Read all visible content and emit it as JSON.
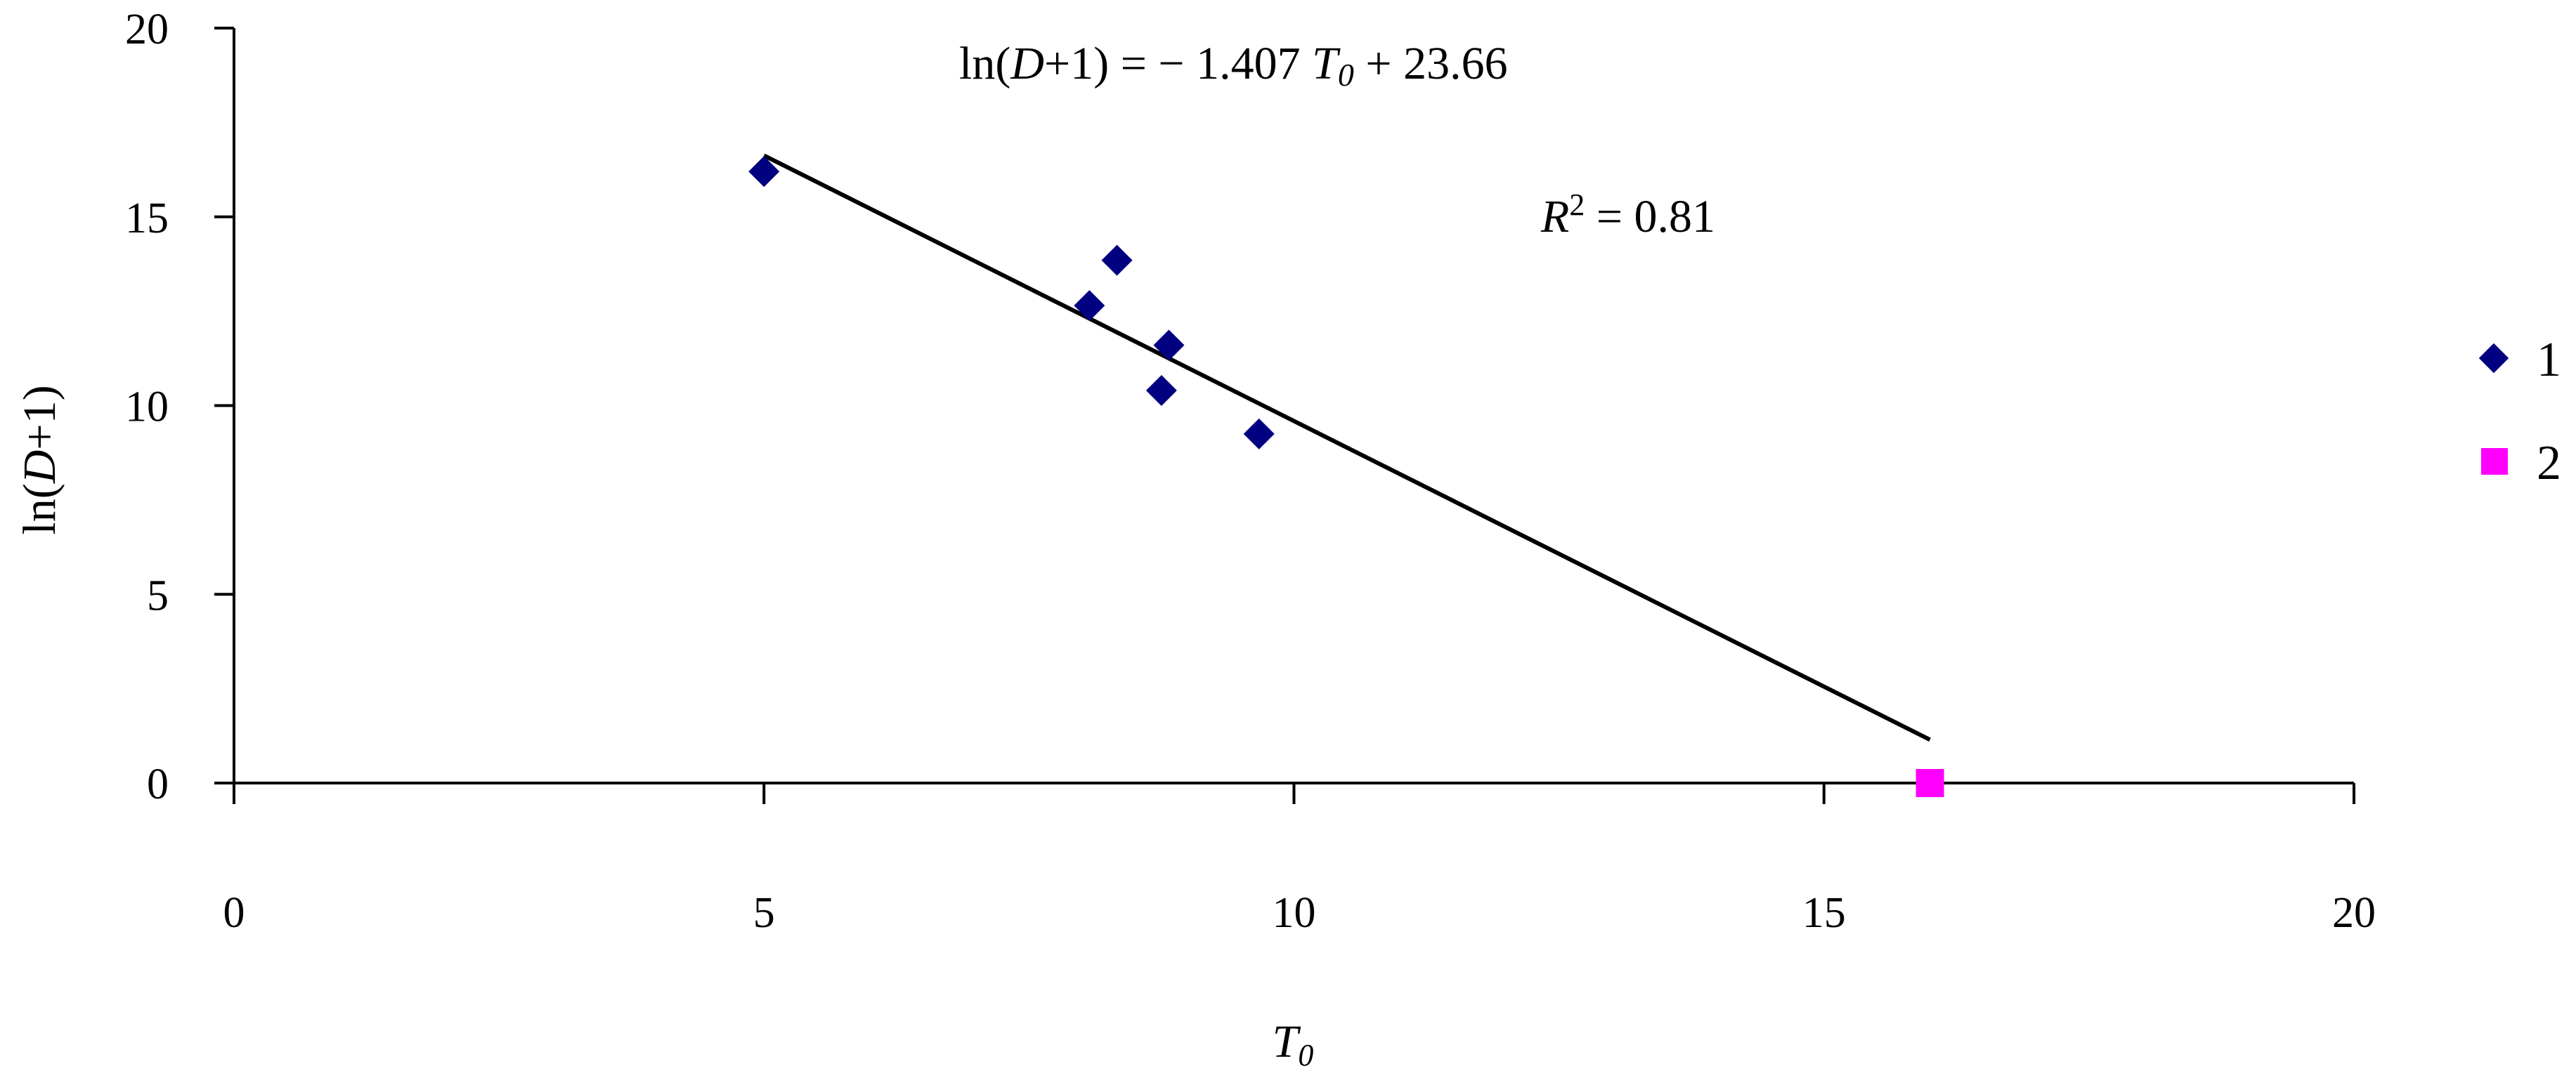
{
  "chart_data": {
    "type": "scatter",
    "x_axis": {
      "label": "T",
      "label_subscript": "0",
      "range": [
        0,
        20
      ],
      "ticks": [
        "0",
        "5",
        "10",
        "15",
        "20"
      ]
    },
    "y_axis": {
      "label_prefix": "ln(",
      "label_var": "D",
      "label_suffix": "+1)",
      "range": [
        0,
        20
      ],
      "ticks": [
        "0",
        "5",
        "10",
        "15",
        "20"
      ]
    },
    "grid": false,
    "legend": {
      "position": "right",
      "entries": [
        {
          "label": "1",
          "marker": "diamond",
          "color": "#000080"
        },
        {
          "label": "2",
          "marker": "square",
          "color": "#ff00ff"
        }
      ]
    },
    "series": [
      {
        "name": "1",
        "marker": "diamond",
        "color": "#000080",
        "points": [
          {
            "x": 5.0,
            "y": 16.2
          },
          {
            "x": 8.07,
            "y": 12.65
          },
          {
            "x": 8.33,
            "y": 13.85
          },
          {
            "x": 8.75,
            "y": 10.4
          },
          {
            "x": 8.82,
            "y": 11.6
          },
          {
            "x": 9.67,
            "y": 9.25
          }
        ]
      },
      {
        "name": "2",
        "marker": "square",
        "color": "#ff00ff",
        "points": [
          {
            "x": 16.0,
            "y": 0.0
          }
        ]
      }
    ],
    "trendline": {
      "slope": -1.407,
      "intercept": 23.66,
      "x_start": 5.0,
      "x_end": 16.0,
      "color": "#000000"
    },
    "annotations": {
      "equation": {
        "lhs_prefix": "ln(",
        "lhs_var": "D",
        "lhs_suffix": "+1) = − 1.407 ",
        "var": "T",
        "var_sub": "0",
        "rest": " + 23.66"
      },
      "r_squared": {
        "var": "R",
        "sup": "2",
        "rest": " = 0.81"
      }
    }
  }
}
